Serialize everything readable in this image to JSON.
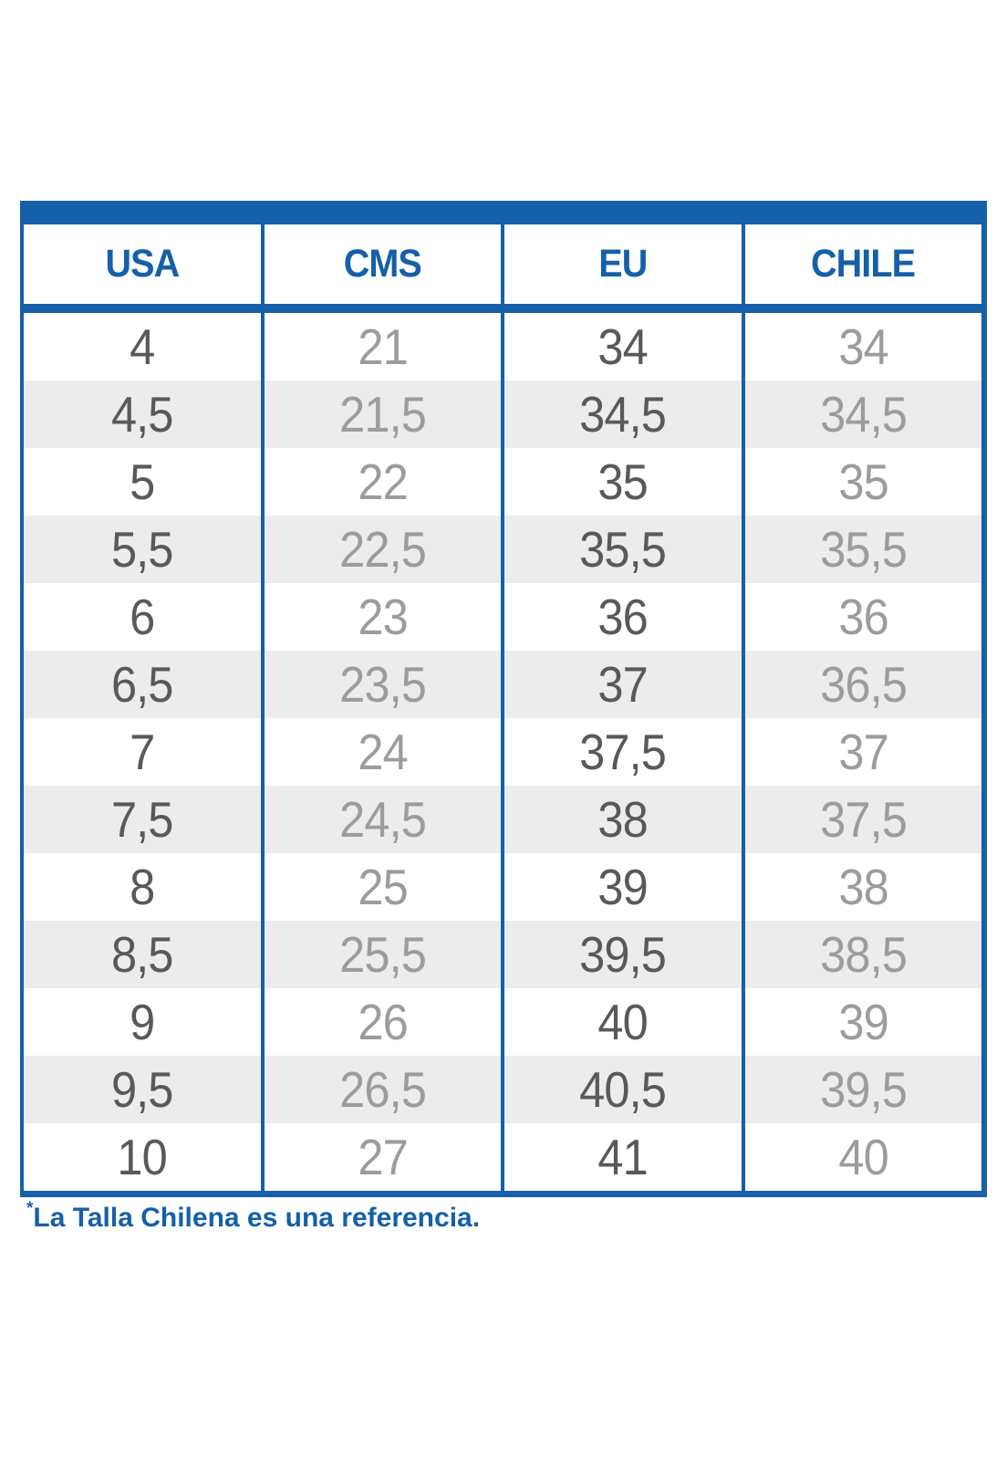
{
  "chart_data": {
    "type": "table",
    "columns": [
      "USA",
      "CMS",
      "EU",
      "CHILE"
    ],
    "rows": [
      [
        "4",
        "21",
        "34",
        "34"
      ],
      [
        "4,5",
        "21,5",
        "34,5",
        "34,5"
      ],
      [
        "5",
        "22",
        "35",
        "35"
      ],
      [
        "5,5",
        "22,5",
        "35,5",
        "35,5"
      ],
      [
        "6",
        "23",
        "36",
        "36"
      ],
      [
        "6,5",
        "23,5",
        "37",
        "36,5"
      ],
      [
        "7",
        "24",
        "37,5",
        "37"
      ],
      [
        "7,5",
        "24,5",
        "38",
        "37,5"
      ],
      [
        "8",
        "25",
        "39",
        "38"
      ],
      [
        "8,5",
        "25,5",
        "39,5",
        "38,5"
      ],
      [
        "9",
        "26",
        "40",
        "39"
      ],
      [
        "9,5",
        "26,5",
        "40,5",
        "39,5"
      ],
      [
        "10",
        "27",
        "41",
        "40"
      ]
    ],
    "footnote": "*La Talla Chilena es una referencia.",
    "layout_hints": {
      "stripe_pattern": "alternating white and light gray rows",
      "dark_text_columns": [
        "USA",
        "EU"
      ],
      "light_text_columns": [
        "CMS",
        "CHILE"
      ]
    }
  },
  "footnote": {
    "marker": "*",
    "text": "La Talla Chilena es una referencia."
  },
  "colors": {
    "accent_blue": "#1560A8",
    "dark_text": "#58595B",
    "light_text": "#9A9C9F",
    "stripe_bg": "#ECECEC"
  }
}
